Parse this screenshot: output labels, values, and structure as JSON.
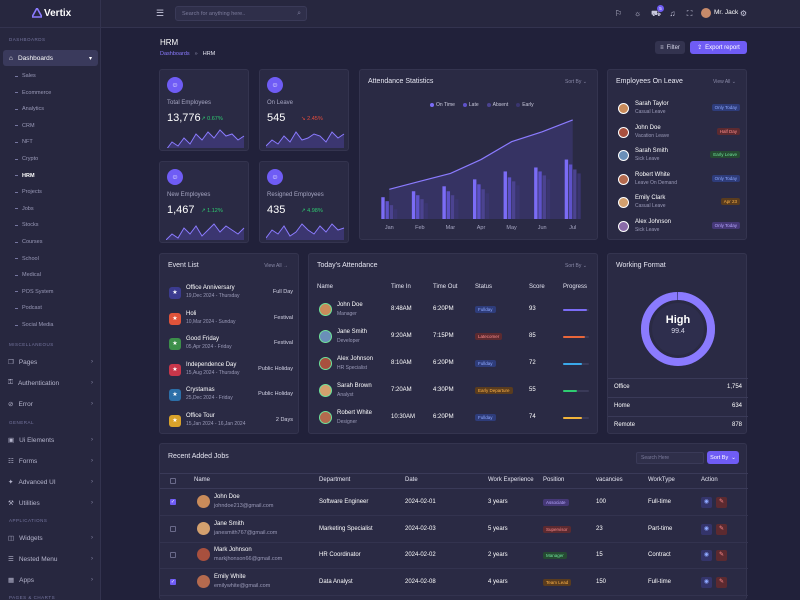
{
  "app": {
    "name": "Vertix",
    "user": "Mr. Jack",
    "search_placeholder": "Search for anything here..",
    "cart_count": "5"
  },
  "sidebar": {
    "sections": [
      "DASHBOARDS",
      "MISCELLANEOUS",
      "GENERAL",
      "APPLICATIONS",
      "PAGES & CHARTS"
    ],
    "dashboards_label": "Dashboards",
    "sub_items": [
      "Sales",
      "Ecommerce",
      "Analytics",
      "CRM",
      "NFT",
      "Crypto",
      "HRM",
      "Projects",
      "Jobs",
      "Stocks",
      "Courses",
      "School",
      "Medical",
      "POS System",
      "Podcast",
      "Social Media"
    ],
    "misc": [
      "Pages",
      "Authentication",
      "Error"
    ],
    "general": [
      "Ui Elements",
      "Forms",
      "Advanced UI",
      "Utilities"
    ],
    "apps": [
      "Widgets",
      "Nested Menu",
      "Apps"
    ]
  },
  "page": {
    "title": "HRM",
    "breadcrumb": [
      "Dashboards",
      "HRM"
    ],
    "filter_label": "Filter",
    "export_label": "Export report"
  },
  "stats": [
    {
      "label": "Total Employees",
      "value": "13,776",
      "pct": "0.67%",
      "dir": "up",
      "icon": "users-icon"
    },
    {
      "label": "On Leave",
      "value": "545",
      "pct": "2.45%",
      "dir": "down",
      "icon": "user-leave-icon"
    },
    {
      "label": "New Employees",
      "value": "1,467",
      "pct": "1.12%",
      "dir": "up",
      "icon": "user-plus-icon"
    },
    {
      "label": "Resigned Employees",
      "value": "435",
      "pct": "4.98%",
      "dir": "up",
      "icon": "user-minus-icon"
    }
  ],
  "attendance": {
    "title": "Attendance Statistics",
    "sort_label": "Sort By",
    "legend": [
      "On Time",
      "Late",
      "Absent",
      "Early"
    ]
  },
  "chart_data": {
    "type": "bar",
    "categories": [
      "Jan",
      "Feb",
      "Mar",
      "Apr",
      "May",
      "Jun",
      "Jul"
    ],
    "series": [
      {
        "name": "On Time",
        "values": [
          22,
          28,
          33,
          40,
          48,
          52,
          60
        ]
      },
      {
        "name": "Late",
        "values": [
          18,
          24,
          28,
          35,
          42,
          48,
          55
        ]
      },
      {
        "name": "Absent",
        "values": [
          14,
          20,
          24,
          30,
          38,
          44,
          50
        ]
      },
      {
        "name": "Early",
        "values": [
          10,
          16,
          20,
          26,
          34,
          40,
          46
        ]
      }
    ],
    "trend": [
      30,
      38,
      46,
      60,
      78,
      88,
      100
    ],
    "ylim": [
      0,
      110
    ],
    "colors": {
      "On Time": "#7b6cf6",
      "Late": "#5e52c9",
      "Absent": "#4b4390",
      "Early": "#3a3570"
    }
  },
  "leave": {
    "title": "Employees On Leave",
    "view_all": "View All",
    "items": [
      {
        "name": "Sarah Taylor",
        "type": "Casual Leave",
        "badge": "Only Today",
        "style": "b-blue"
      },
      {
        "name": "John Doe",
        "type": "Vacation Leave",
        "badge": "Half Day",
        "style": "b-red"
      },
      {
        "name": "Sarah Smith",
        "type": "Sick Leave",
        "badge": "Early Leave",
        "style": "b-green"
      },
      {
        "name": "Robert White",
        "type": "Leave On Demand",
        "badge": "Only Today",
        "style": "b-blue"
      },
      {
        "name": "Emily Clark",
        "type": "Casual Leave",
        "badge": "Apr 23",
        "style": "b-orange"
      },
      {
        "name": "Alex Johnson",
        "type": "Sick Leave",
        "badge": "Only Today",
        "style": "b-purple"
      }
    ]
  },
  "events": {
    "title": "Event List",
    "view_all": "View All",
    "items": [
      {
        "name": "Office Anniversary",
        "date": "19,Dec 2024 - Thursday",
        "tag": "Full Day",
        "color": "#3b3b8f",
        "icon": "anniversary-icon"
      },
      {
        "name": "Holi",
        "date": "10,Mar 2024 - Sunday",
        "tag": "Festival",
        "color": "#e0533a",
        "icon": "holi-icon"
      },
      {
        "name": "Good Friday",
        "date": "05,Apr 2024 - Friday",
        "tag": "Festival",
        "color": "#3c8f4a",
        "icon": "cross-icon"
      },
      {
        "name": "Independence Day",
        "date": "15,Aug 2024 - Thursday",
        "tag": "Public Holiday",
        "color": "#c8364a",
        "icon": "flag-icon"
      },
      {
        "name": "Crystamas",
        "date": "25,Dec 2024 - Friday",
        "tag": "Public Holiday",
        "color": "#2c6fa8",
        "icon": "tree-icon"
      },
      {
        "name": "Office Tour",
        "date": "15,Jan 2024 - 16,Jan 2024",
        "tag": "2 Days",
        "color": "#d9a22a",
        "icon": "tour-icon"
      }
    ]
  },
  "today": {
    "title": "Today's Attendance",
    "sort_label": "Sort By",
    "headers": [
      "Name",
      "Time In",
      "Time Out",
      "Status",
      "Score",
      "Progress"
    ],
    "rows": [
      {
        "name": "John Doe",
        "role": "Manager",
        "in": "8:48AM",
        "out": "6:20PM",
        "status": "Fullday",
        "style": "b-blue",
        "score": "93",
        "progress": 0.93,
        "pcolor": "#7b6cf6"
      },
      {
        "name": "Jane Smith",
        "role": "Developer",
        "in": "9:20AM",
        "out": "7:15PM",
        "status": "Latecomer",
        "style": "b-red",
        "score": "85",
        "progress": 0.85,
        "pcolor": "#e9663a"
      },
      {
        "name": "Alex Johnson",
        "role": "HR Specialist",
        "in": "8:10AM",
        "out": "6:20PM",
        "status": "Fullday",
        "style": "b-blue",
        "score": "72",
        "progress": 0.72,
        "pcolor": "#3aa8e9"
      },
      {
        "name": "Sarah Brown",
        "role": "Analyst",
        "in": "7:20AM",
        "out": "4:30PM",
        "status": "Early Departure",
        "style": "b-orange",
        "score": "55",
        "progress": 0.55,
        "pcolor": "#2ecc71"
      },
      {
        "name": "Robert White",
        "role": "Designer",
        "in": "10:30AM",
        "out": "6:20PM",
        "status": "Fullday",
        "style": "b-blue",
        "score": "74",
        "progress": 0.74,
        "pcolor": "#f2b43a"
      }
    ]
  },
  "working": {
    "title": "Working Format",
    "center_label": "High",
    "center_value": "99.4",
    "gauge": 0.994,
    "rows": [
      {
        "label": "Office",
        "value": "1,754"
      },
      {
        "label": "Home",
        "value": "634"
      },
      {
        "label": "Remote",
        "value": "878"
      }
    ]
  },
  "jobs": {
    "title": "Recent Added Jobs",
    "search_placeholder": "Search Here",
    "sort_label": "Sort By",
    "headers": [
      "Name",
      "Department",
      "Date",
      "Work Experience",
      "Position",
      "vacancies",
      "WorkType",
      "Action"
    ],
    "rows": [
      {
        "checked": true,
        "name": "John Doe",
        "email": "johndoe213@gmail.com",
        "dept": "Software Engineer",
        "date": "2024-02-01",
        "exp": "3 years",
        "position": "Associate",
        "style": "b-purple",
        "vac": "100",
        "type": "Full-time"
      },
      {
        "checked": false,
        "name": "Jane Smith",
        "email": "janesmith767@gmail.com",
        "dept": "Marketing Specialist",
        "date": "2024-02-03",
        "exp": "5 years",
        "position": "Supervisor",
        "style": "b-red",
        "vac": "23",
        "type": "Part-time"
      },
      {
        "checked": false,
        "name": "Mark Johnson",
        "email": "markjhonson66@gmail.com",
        "dept": "HR Coordinator",
        "date": "2024-02-02",
        "exp": "2 years",
        "position": "Manager",
        "style": "b-green",
        "vac": "15",
        "type": "Contract"
      },
      {
        "checked": true,
        "name": "Emily White",
        "email": "emilywhite@gmail.com",
        "dept": "Data Analyst",
        "date": "2024-02-08",
        "exp": "4 years",
        "position": "Team Lead",
        "style": "b-orange",
        "vac": "150",
        "type": "Full-time"
      }
    ]
  }
}
